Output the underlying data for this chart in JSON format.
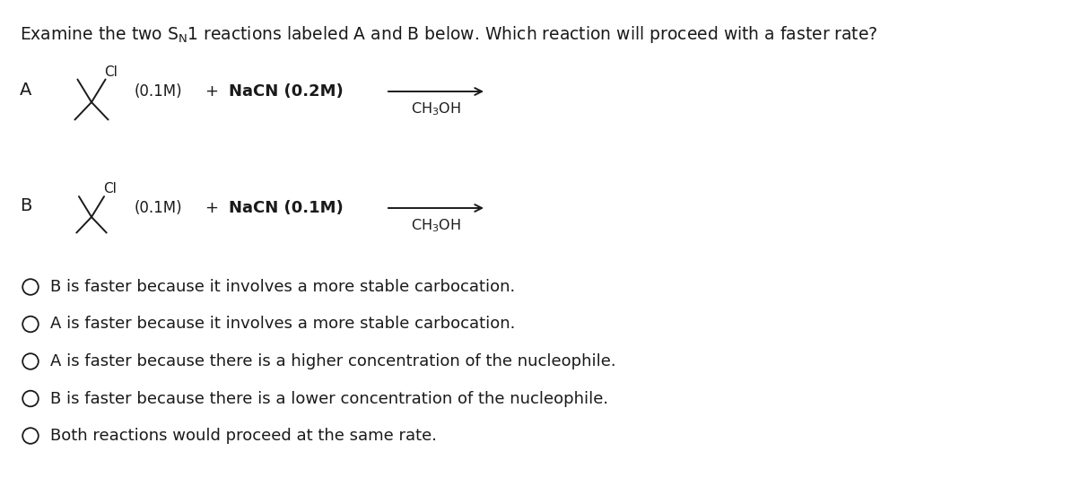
{
  "background_color": "#ffffff",
  "reaction_A_label": "A",
  "reaction_B_label": "B",
  "reaction_A_conc": "(0.1M)",
  "reaction_A_nacn": "NaCN (0.2M)",
  "reaction_B_conc": "(0.1M)",
  "reaction_B_nacn": "NaCN (0.1M)",
  "cl_label": "Cl",
  "plus": "+",
  "choices": [
    "B is faster because it involves a more stable carbocation.",
    "A is faster because it involves a more stable carbocation.",
    "A is faster because there is a higher concentration of the nucleophile.",
    "B is faster because there is a lower concentration of the nucleophile.",
    "Both reactions would proceed at the same rate."
  ],
  "font_size_title": 13.5,
  "font_size_body": 13,
  "font_size_small": 11.5,
  "text_color": "#1a1a1a"
}
